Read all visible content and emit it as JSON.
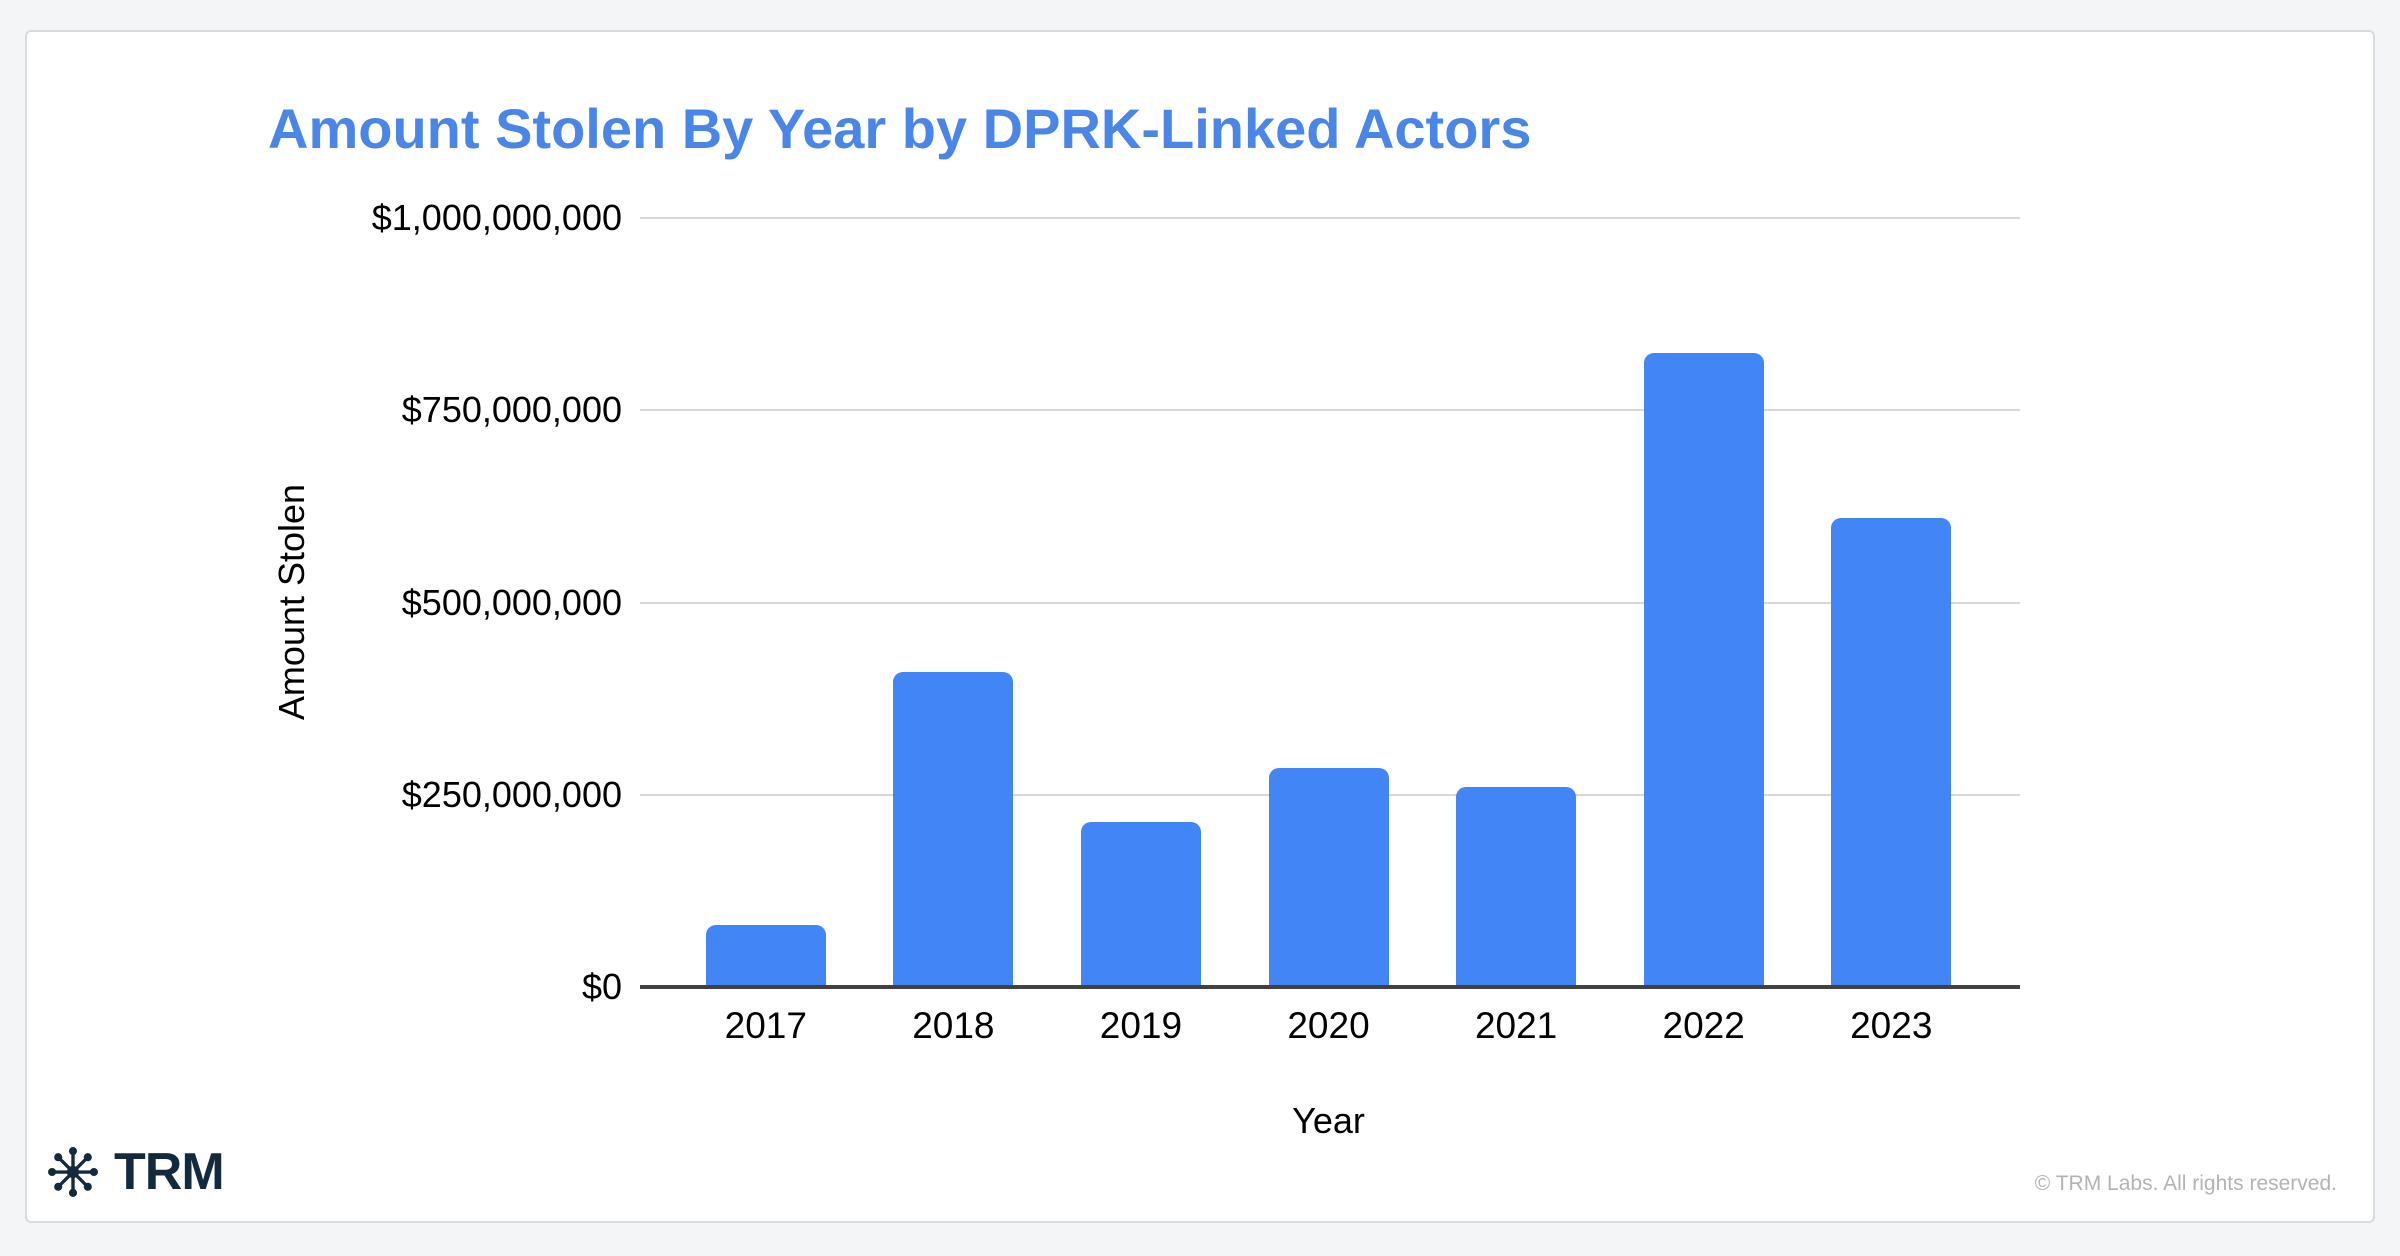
{
  "page": {
    "background_color": "#f4f5f6"
  },
  "card": {
    "background_color": "#ffffff",
    "border_color": "#d8dadc"
  },
  "chart_data": {
    "type": "bar",
    "title": "Amount Stolen By Year by DPRK-Linked Actors",
    "title_color": "#4a86e8",
    "xlabel": "Year",
    "ylabel": "Amount Stolen",
    "categories": [
      "2017",
      "2018",
      "2019",
      "2020",
      "2021",
      "2022",
      "2023"
    ],
    "values": [
      80000000,
      410000000,
      215000000,
      285000000,
      260000000,
      825000000,
      610000000
    ],
    "ylim": [
      0,
      1000000000
    ],
    "y_ticks": [
      {
        "label": "$1,000,000,000",
        "value": 1000000000
      },
      {
        "label": "$750,000,000",
        "value": 750000000
      },
      {
        "label": "$500,000,000",
        "value": 500000000
      },
      {
        "label": "$250,000,000",
        "value": 250000000
      },
      {
        "label": "$0",
        "value": 0
      }
    ],
    "bar_color": "#4285f4",
    "grid": true,
    "legend": false
  },
  "footer": {
    "logo_icon": "trm-asterisk-icon",
    "logo_text": "TRM",
    "logo_color": "#132a3e",
    "copyright": "© TRM Labs. All rights reserved.",
    "copyright_color": "#b3b3b7"
  }
}
